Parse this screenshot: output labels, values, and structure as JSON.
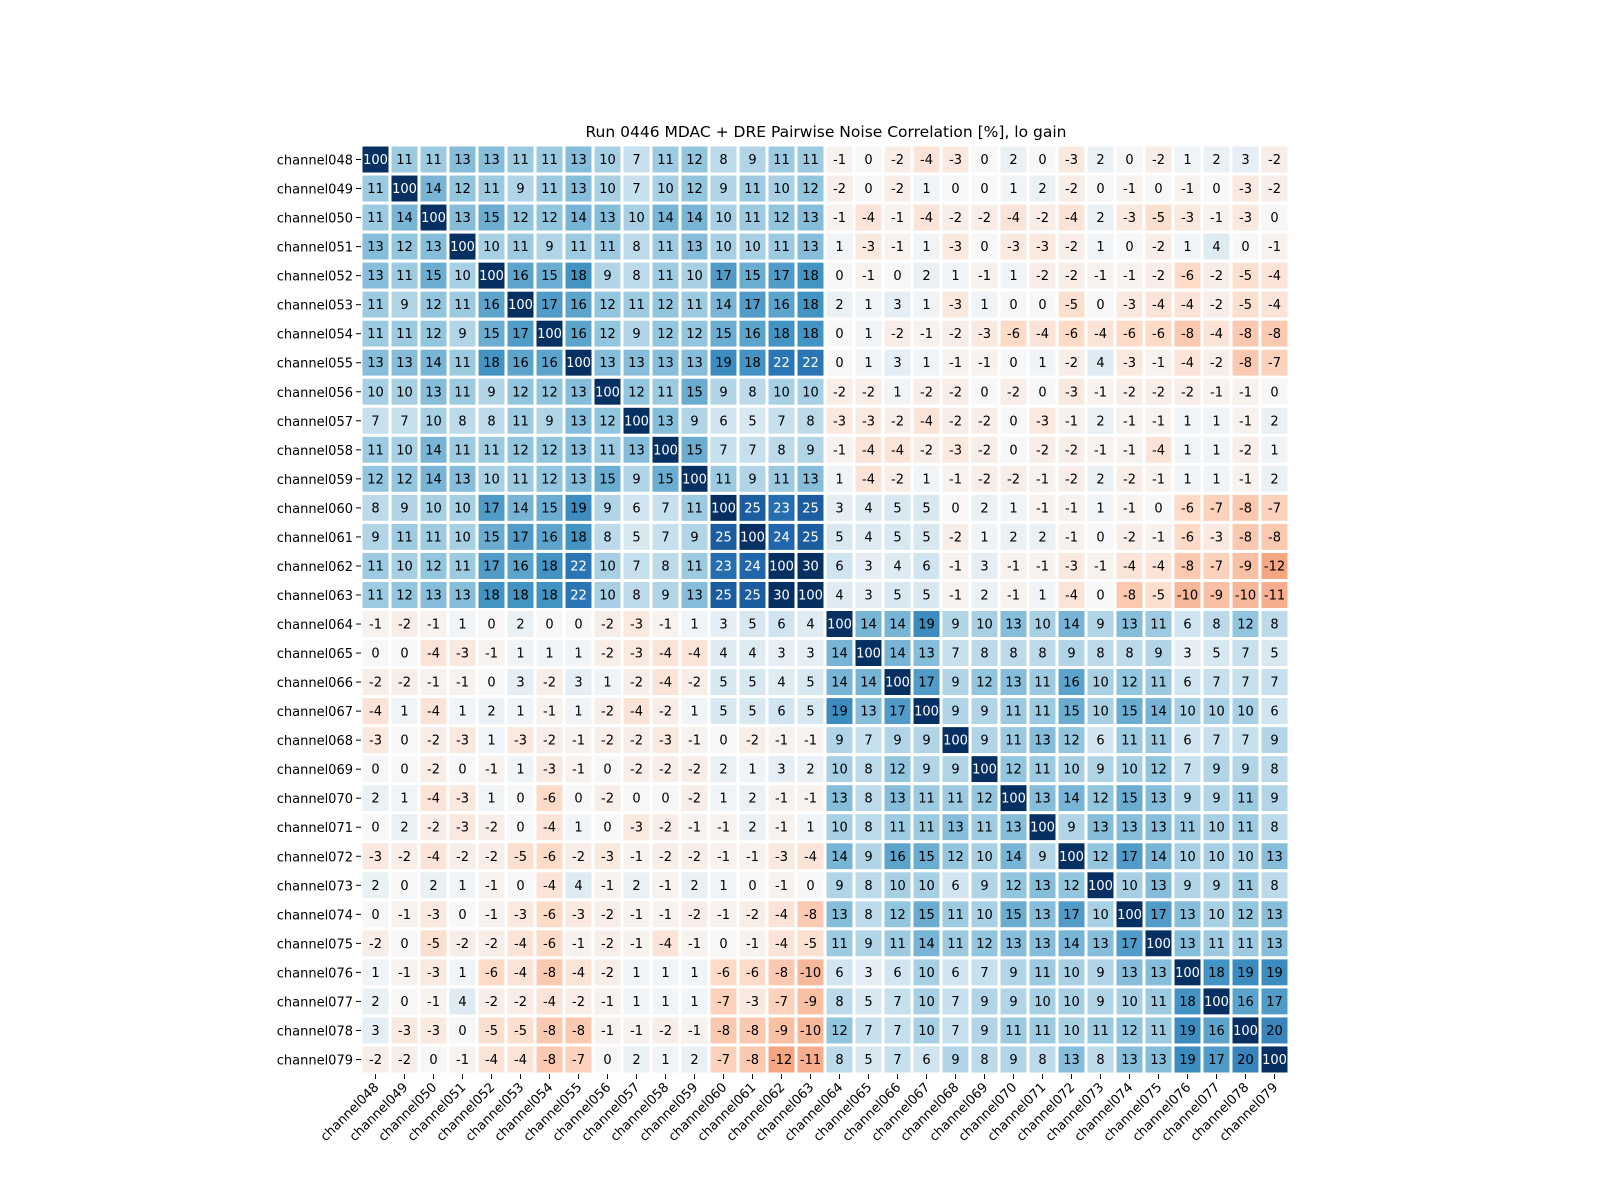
{
  "chart_data": {
    "type": "heatmap",
    "title": "Run 0446 MDAC + DRE Pairwise Noise Correlation [%], lo gain",
    "xlabel": "",
    "ylabel": "",
    "colormap": "RdBu (diverging, red negative, blue positive)",
    "color_scale_range": [
      -30,
      30
    ],
    "grid": false,
    "legend": "none",
    "row_labels": [
      "channel048",
      "channel049",
      "channel050",
      "channel051",
      "channel052",
      "channel053",
      "channel054",
      "channel055",
      "channel056",
      "channel057",
      "channel058",
      "channel059",
      "channel060",
      "channel061",
      "channel062",
      "channel063",
      "channel064",
      "channel065",
      "channel066",
      "channel067",
      "channel068",
      "channel069",
      "channel070",
      "channel071",
      "channel072",
      "channel073",
      "channel074",
      "channel075",
      "channel076",
      "channel077",
      "channel078",
      "channel079"
    ],
    "col_labels": [
      "channel048",
      "channel049",
      "channel050",
      "channel051",
      "channel052",
      "channel053",
      "channel054",
      "channel055",
      "channel056",
      "channel057",
      "channel058",
      "channel059",
      "channel060",
      "channel061",
      "channel062",
      "channel063",
      "channel064",
      "channel065",
      "channel066",
      "channel067",
      "channel068",
      "channel069",
      "channel070",
      "channel071",
      "channel072",
      "channel073",
      "channel074",
      "channel075",
      "channel076",
      "channel077",
      "channel078",
      "channel079"
    ],
    "values": [
      [
        100,
        11,
        11,
        13,
        13,
        11,
        11,
        13,
        10,
        7,
        11,
        12,
        8,
        9,
        11,
        11,
        -1,
        0,
        -2,
        -4,
        -3,
        0,
        2,
        0,
        -3,
        2,
        0,
        -2,
        1,
        2,
        3,
        -2
      ],
      [
        11,
        100,
        14,
        12,
        11,
        9,
        11,
        13,
        10,
        7,
        10,
        12,
        9,
        11,
        10,
        12,
        -2,
        0,
        -2,
        1,
        0,
        0,
        1,
        2,
        -2,
        0,
        -1,
        0,
        -1,
        0,
        -3,
        -2
      ],
      [
        11,
        14,
        100,
        13,
        15,
        12,
        12,
        14,
        13,
        10,
        14,
        14,
        10,
        11,
        12,
        13,
        -1,
        -4,
        -1,
        -4,
        -2,
        -2,
        -4,
        -2,
        -4,
        2,
        -3,
        -5,
        -3,
        -1,
        -3,
        0
      ],
      [
        13,
        12,
        13,
        100,
        10,
        11,
        9,
        11,
        11,
        8,
        11,
        13,
        10,
        10,
        11,
        13,
        1,
        -3,
        -1,
        1,
        -3,
        0,
        -3,
        -3,
        -2,
        1,
        0,
        -2,
        1,
        4,
        0,
        -1
      ],
      [
        13,
        11,
        15,
        10,
        100,
        16,
        15,
        18,
        9,
        8,
        11,
        10,
        17,
        15,
        17,
        18,
        0,
        -1,
        0,
        2,
        1,
        -1,
        1,
        -2,
        -2,
        -1,
        -1,
        -2,
        -6,
        -2,
        -5,
        -4
      ],
      [
        11,
        9,
        12,
        11,
        16,
        100,
        17,
        16,
        12,
        11,
        12,
        11,
        14,
        17,
        16,
        18,
        2,
        1,
        3,
        1,
        -3,
        1,
        0,
        0,
        -5,
        0,
        -3,
        -4,
        -4,
        -2,
        -5,
        -4
      ],
      [
        11,
        11,
        12,
        9,
        15,
        17,
        100,
        16,
        12,
        9,
        12,
        12,
        15,
        16,
        18,
        18,
        0,
        1,
        -2,
        -1,
        -2,
        -3,
        -6,
        -4,
        -6,
        -4,
        -6,
        -6,
        -8,
        -4,
        -8,
        -8
      ],
      [
        13,
        13,
        14,
        11,
        18,
        16,
        16,
        100,
        13,
        13,
        13,
        13,
        19,
        18,
        22,
        22,
        0,
        1,
        3,
        1,
        -1,
        -1,
        0,
        1,
        -2,
        4,
        -3,
        -1,
        -4,
        -2,
        -8,
        -7
      ],
      [
        10,
        10,
        13,
        11,
        9,
        12,
        12,
        13,
        100,
        12,
        11,
        15,
        9,
        8,
        10,
        10,
        -2,
        -2,
        1,
        -2,
        -2,
        0,
        -2,
        0,
        -3,
        -1,
        -2,
        -2,
        -2,
        -1,
        -1,
        0
      ],
      [
        7,
        7,
        10,
        8,
        8,
        11,
        9,
        13,
        12,
        100,
        13,
        9,
        6,
        5,
        7,
        8,
        -3,
        -3,
        -2,
        -4,
        -2,
        -2,
        0,
        -3,
        -1,
        2,
        -1,
        -1,
        1,
        1,
        -1,
        2
      ],
      [
        11,
        10,
        14,
        11,
        11,
        12,
        12,
        13,
        11,
        13,
        100,
        15,
        7,
        7,
        8,
        9,
        -1,
        -4,
        -4,
        -2,
        -3,
        -2,
        0,
        -2,
        -2,
        -1,
        -1,
        -4,
        1,
        1,
        -2,
        1
      ],
      [
        12,
        12,
        14,
        13,
        10,
        11,
        12,
        13,
        15,
        9,
        15,
        100,
        11,
        9,
        11,
        13,
        1,
        -4,
        -2,
        1,
        -1,
        -2,
        -2,
        -1,
        -2,
        2,
        -2,
        -1,
        1,
        1,
        -1,
        2
      ],
      [
        8,
        9,
        10,
        10,
        17,
        14,
        15,
        19,
        9,
        6,
        7,
        11,
        100,
        25,
        23,
        25,
        3,
        4,
        5,
        5,
        0,
        2,
        1,
        -1,
        -1,
        1,
        -1,
        0,
        -6,
        -7,
        -8,
        -7
      ],
      [
        9,
        11,
        11,
        10,
        15,
        17,
        16,
        18,
        8,
        5,
        7,
        9,
        25,
        100,
        24,
        25,
        5,
        4,
        5,
        5,
        -2,
        1,
        2,
        2,
        -1,
        0,
        -2,
        -1,
        -6,
        -3,
        -8,
        -8
      ],
      [
        11,
        10,
        12,
        11,
        17,
        16,
        18,
        22,
        10,
        7,
        8,
        11,
        23,
        24,
        100,
        30,
        6,
        3,
        4,
        6,
        -1,
        3,
        -1,
        -1,
        -3,
        -1,
        -4,
        -4,
        -8,
        -7,
        -9,
        -12
      ],
      [
        11,
        12,
        13,
        13,
        18,
        18,
        18,
        22,
        10,
        8,
        9,
        13,
        25,
        25,
        30,
        100,
        4,
        3,
        5,
        5,
        -1,
        2,
        -1,
        1,
        -4,
        0,
        -8,
        -5,
        -10,
        -9,
        -10,
        -11
      ],
      [
        -1,
        -2,
        -1,
        1,
        0,
        2,
        0,
        0,
        -2,
        -3,
        -1,
        1,
        3,
        5,
        6,
        4,
        100,
        14,
        14,
        19,
        9,
        10,
        13,
        10,
        14,
        9,
        13,
        11,
        6,
        8,
        12,
        8
      ],
      [
        0,
        0,
        -4,
        -3,
        -1,
        1,
        1,
        1,
        -2,
        -3,
        -4,
        -4,
        4,
        4,
        3,
        3,
        14,
        100,
        14,
        13,
        7,
        8,
        8,
        8,
        9,
        8,
        8,
        9,
        3,
        5,
        7,
        5
      ],
      [
        -2,
        -2,
        -1,
        -1,
        0,
        3,
        -2,
        3,
        1,
        -2,
        -4,
        -2,
        5,
        5,
        4,
        5,
        14,
        14,
        100,
        17,
        9,
        12,
        13,
        11,
        16,
        10,
        12,
        11,
        6,
        7,
        7,
        7
      ],
      [
        -4,
        1,
        -4,
        1,
        2,
        1,
        -1,
        1,
        -2,
        -4,
        -2,
        1,
        5,
        5,
        6,
        5,
        19,
        13,
        17,
        100,
        9,
        9,
        11,
        11,
        15,
        10,
        15,
        14,
        10,
        10,
        10,
        6
      ],
      [
        -3,
        0,
        -2,
        -3,
        1,
        -3,
        -2,
        -1,
        -2,
        -2,
        -3,
        -1,
        0,
        -2,
        -1,
        -1,
        9,
        7,
        9,
        9,
        100,
        9,
        11,
        13,
        12,
        6,
        11,
        11,
        6,
        7,
        7,
        9
      ],
      [
        0,
        0,
        -2,
        0,
        -1,
        1,
        -3,
        -1,
        0,
        -2,
        -2,
        -2,
        2,
        1,
        3,
        2,
        10,
        8,
        12,
        9,
        9,
        100,
        12,
        11,
        10,
        9,
        10,
        12,
        7,
        9,
        9,
        8
      ],
      [
        2,
        1,
        -4,
        -3,
        1,
        0,
        -6,
        0,
        -2,
        0,
        0,
        -2,
        1,
        2,
        -1,
        -1,
        13,
        8,
        13,
        11,
        11,
        12,
        100,
        13,
        14,
        12,
        15,
        13,
        9,
        9,
        11,
        9
      ],
      [
        0,
        2,
        -2,
        -3,
        -2,
        0,
        -4,
        1,
        0,
        -3,
        -2,
        -1,
        -1,
        2,
        -1,
        1,
        10,
        8,
        11,
        11,
        13,
        11,
        13,
        100,
        9,
        13,
        13,
        13,
        11,
        10,
        11,
        8
      ],
      [
        -3,
        -2,
        -4,
        -2,
        -2,
        -5,
        -6,
        -2,
        -3,
        -1,
        -2,
        -2,
        -1,
        -1,
        -3,
        -4,
        14,
        9,
        16,
        15,
        12,
        10,
        14,
        9,
        100,
        12,
        17,
        14,
        10,
        10,
        10,
        13
      ],
      [
        2,
        0,
        2,
        1,
        -1,
        0,
        -4,
        4,
        -1,
        2,
        -1,
        2,
        1,
        0,
        -1,
        0,
        9,
        8,
        10,
        10,
        6,
        9,
        12,
        13,
        12,
        100,
        10,
        13,
        9,
        9,
        11,
        8
      ],
      [
        0,
        -1,
        -3,
        0,
        -1,
        -3,
        -6,
        -3,
        -2,
        -1,
        -1,
        -2,
        -1,
        -2,
        -4,
        -8,
        13,
        8,
        12,
        15,
        11,
        10,
        15,
        13,
        17,
        10,
        100,
        17,
        13,
        10,
        12,
        13
      ],
      [
        -2,
        0,
        -5,
        -2,
        -2,
        -4,
        -6,
        -1,
        -2,
        -1,
        -4,
        -1,
        0,
        -1,
        -4,
        -5,
        11,
        9,
        11,
        14,
        11,
        12,
        13,
        13,
        14,
        13,
        17,
        100,
        13,
        11,
        11,
        13
      ],
      [
        1,
        -1,
        -3,
        1,
        -6,
        -4,
        -8,
        -4,
        -2,
        1,
        1,
        1,
        -6,
        -6,
        -8,
        -10,
        6,
        3,
        6,
        10,
        6,
        7,
        9,
        11,
        10,
        9,
        13,
        13,
        100,
        18,
        19,
        19
      ],
      [
        2,
        0,
        -1,
        4,
        -2,
        -2,
        -4,
        -2,
        -1,
        1,
        1,
        1,
        -7,
        -3,
        -7,
        -9,
        8,
        5,
        7,
        10,
        7,
        9,
        9,
        10,
        10,
        9,
        10,
        11,
        18,
        100,
        16,
        17
      ],
      [
        3,
        -3,
        -3,
        0,
        -5,
        -5,
        -8,
        -8,
        -1,
        -1,
        -2,
        -1,
        -8,
        -8,
        -9,
        -10,
        12,
        7,
        7,
        10,
        7,
        9,
        11,
        11,
        10,
        11,
        12,
        11,
        19,
        16,
        100,
        20
      ],
      [
        -2,
        -2,
        0,
        -1,
        -4,
        -4,
        -8,
        -7,
        0,
        2,
        1,
        2,
        -7,
        -8,
        -12,
        -11,
        8,
        5,
        7,
        6,
        9,
        8,
        9,
        8,
        13,
        8,
        13,
        13,
        19,
        17,
        20,
        100
      ]
    ]
  }
}
